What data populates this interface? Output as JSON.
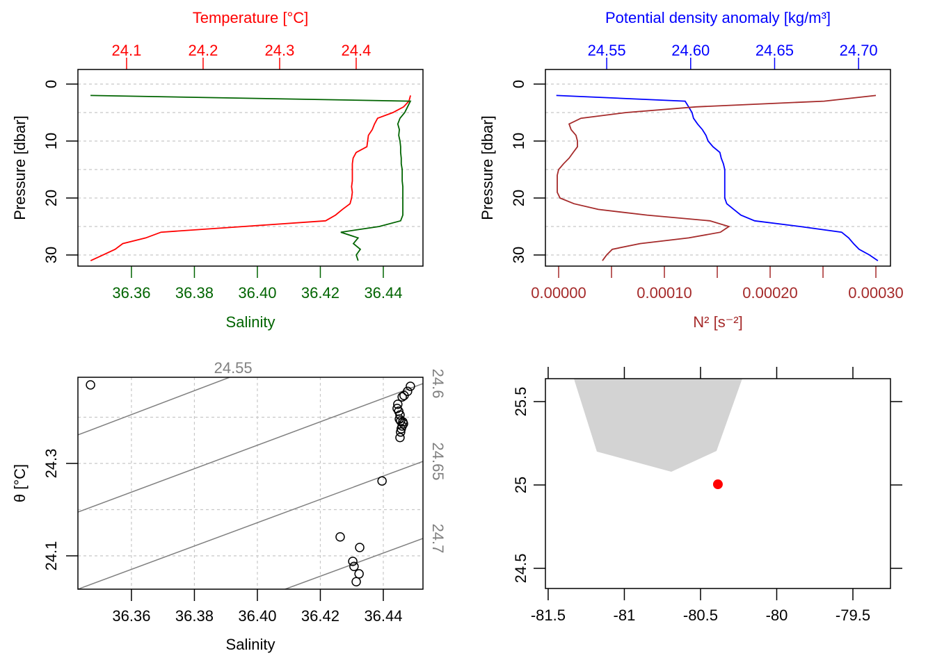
{
  "chart_data": [
    {
      "type": "profile",
      "y_label": "Pressure [dbar]",
      "y_reversed": true,
      "pressure": [
        2,
        3,
        4,
        5,
        6,
        7,
        8,
        9,
        10,
        11,
        12,
        13,
        14,
        15,
        16,
        17,
        18,
        19,
        20,
        21,
        22,
        23,
        24,
        25,
        26,
        27,
        28,
        29,
        30,
        31
      ],
      "ylim": [
        -2.56,
        31.95
      ],
      "yticks": [
        0,
        10,
        20,
        30
      ],
      "grid_yticks": [
        0,
        5,
        10,
        15,
        20,
        25,
        30
      ],
      "series": [
        {
          "name": "Temperature [°C]",
          "color": "#ff0000",
          "axis": "top",
          "xlim": [
            24.0364,
            24.4873
          ],
          "xticks": [
            24.1,
            24.2,
            24.3,
            24.4
          ],
          "values": [
            24.471,
            24.469,
            24.462,
            24.448,
            24.428,
            24.424,
            24.421,
            24.416,
            24.415,
            24.414,
            24.4,
            24.396,
            24.395,
            24.395,
            24.395,
            24.395,
            24.394,
            24.395,
            24.394,
            24.392,
            24.382,
            24.373,
            24.36,
            24.253,
            24.145,
            24.125,
            24.095,
            24.085,
            24.069,
            24.053
          ]
        },
        {
          "name": "Salinity",
          "color": "#006400",
          "axis": "bottom",
          "xlim": [
            36.343,
            36.4526
          ],
          "xticks": [
            36.36,
            36.38,
            {
              "value": 36.4,
              "label": "36.40"
            },
            36.42,
            36.44
          ],
          "values": [
            36.347,
            36.4486,
            36.4477,
            36.4468,
            36.4453,
            36.4446,
            36.4451,
            36.4449,
            36.4453,
            36.4455,
            36.4455,
            36.4457,
            36.4457,
            36.446,
            36.446,
            36.446,
            36.4462,
            36.4462,
            36.4462,
            36.4462,
            36.4462,
            36.4462,
            36.4455,
            36.4387,
            36.4265,
            36.432,
            36.4305,
            36.4327,
            36.4314,
            36.432
          ]
        }
      ]
    },
    {
      "type": "profile",
      "y_label": "Pressure [dbar]",
      "y_reversed": true,
      "pressure": [
        2,
        3,
        4,
        5,
        6,
        7,
        8,
        9,
        10,
        11,
        12,
        13,
        14,
        15,
        16,
        17,
        18,
        19,
        20,
        21,
        22,
        23,
        24,
        25,
        26,
        27,
        28,
        29,
        30,
        31
      ],
      "ylim": [
        -2.56,
        31.95
      ],
      "yticks": [
        0,
        10,
        20,
        30
      ],
      "grid_yticks": [
        0,
        5,
        10,
        15,
        20,
        25,
        30
      ],
      "series": [
        {
          "name": "Potential density anomaly [kg/m³]",
          "color": "#0000ff",
          "axis": "top",
          "xlim": [
            24.5135,
            24.719
          ],
          "xticks": [
            24.55,
            {
              "value": 24.6,
              "label": "24.60"
            },
            24.65,
            {
              "value": 24.7,
              "label": "24.70"
            }
          ],
          "values": [
            24.52,
            24.5967,
            24.5988,
            24.6008,
            24.6017,
            24.6041,
            24.607,
            24.6091,
            24.6104,
            24.6133,
            24.6174,
            24.6182,
            24.6195,
            24.6203,
            24.6203,
            24.6203,
            24.6203,
            24.6203,
            24.6203,
            24.6215,
            24.6257,
            24.6299,
            24.6381,
            24.6651,
            24.6899,
            24.6941,
            24.697,
            24.7003,
            24.7065,
            24.7115
          ]
        },
        {
          "name": "N² [s⁻²]",
          "color": "#a52a2a",
          "axis": "bottom",
          "xlim": [
            -1.25e-05,
            0.0003138
          ],
          "xticks": [
            {
              "value": 0,
              "label": "0.00000"
            },
            {
              "value": 0.0001,
              "label": "0.00010"
            },
            {
              "value": 0.0002,
              "label": "0.00020"
            },
            {
              "value": 0.0003,
              "label": "0.00030"
            }
          ],
          "minor_xticks": [
            5e-05,
            0.00015,
            0.00025
          ],
          "values": [
            0.0003,
            0.000251,
            0.00013,
            6.38e-05,
            2.11e-05,
            9.9e-06,
            1.18e-05,
            1.64e-05,
            1.78e-05,
            1.78e-05,
            1.38e-05,
            9.9e-06,
            4.6e-06,
            0,
            -1.3e-06,
            -1.3e-06,
            -1.3e-06,
            -1.3e-06,
            1.3e-06,
            1.45e-05,
            3.75e-05,
            8.36e-05,
            0.000143,
            0.000161,
            0.000153,
            0.000123,
            7.7e-05,
            5.07e-05,
            4.54e-05,
            4.14e-05
          ]
        }
      ]
    },
    {
      "type": "ts",
      "x_label": "Salinity",
      "y_label": "θ [°C]",
      "xlim": [
        36.343,
        36.4526
      ],
      "xticks": [
        36.36,
        36.38,
        {
          "value": 36.4,
          "label": "36.40"
        },
        36.42,
        36.44
      ],
      "ylim": [
        24.0278,
        24.4865
      ],
      "yticks": [
        24.1,
        24.3
      ],
      "grid_yticks": [
        24.1,
        24.2,
        24.3,
        24.4
      ],
      "grid": true,
      "x": [
        36.347,
        36.4486,
        36.4477,
        36.4466,
        36.446,
        36.4446,
        36.4444,
        36.4449,
        36.4453,
        36.4451,
        36.4455,
        36.4462,
        36.4464,
        36.446,
        36.4457,
        36.4455,
        36.4453,
        36.4396,
        36.4263,
        36.4325,
        36.4303,
        36.4307,
        36.4323,
        36.4314
      ],
      "y": [
        24.47,
        24.467,
        24.456,
        24.447,
        24.444,
        24.428,
        24.419,
        24.413,
        24.405,
        24.396,
        24.392,
        24.39,
        24.386,
        24.381,
        24.375,
        24.368,
        24.356,
        24.262,
        24.141,
        24.118,
        24.088,
        24.077,
        24.061,
        24.044
      ],
      "contour_color": "#808080",
      "contours": [
        {
          "level": 24.55,
          "S": [
            36.343,
            36.3912
          ],
          "theta": [
            24.3617,
            24.4865
          ]
        },
        {
          "level": 24.6,
          "S": [
            36.343,
            36.4526
          ],
          "theta": [
            24.1947,
            24.4729
          ]
        },
        {
          "level": 24.65,
          "S": [
            36.343,
            36.4526
          ],
          "theta": [
            24.0278,
            24.3045
          ]
        },
        {
          "level": 24.7,
          "S": [
            36.4088,
            36.4526
          ],
          "theta": [
            24.0278,
            24.1376
          ]
        }
      ]
    },
    {
      "type": "map",
      "xlim": [
        -81.518,
        -79.2534
      ],
      "xticks": [
        -81.5,
        -81,
        -80.5,
        -80,
        -79.5
      ],
      "ylim": [
        24.379,
        25.6375
      ],
      "yticks": [
        24.5,
        25,
        25.5
      ],
      "land_color": "#d3d3d3",
      "station_color": "#ff0000",
      "coastline": {
        "lon": [
          -81.3356,
          -81.1804,
          -80.6918,
          -80.395,
          -80.2215
        ],
        "lat": [
          25.65,
          25.2,
          25.079,
          25.204,
          25.65
        ]
      },
      "station": {
        "lon": -80.386,
        "lat": 25.004
      }
    }
  ]
}
